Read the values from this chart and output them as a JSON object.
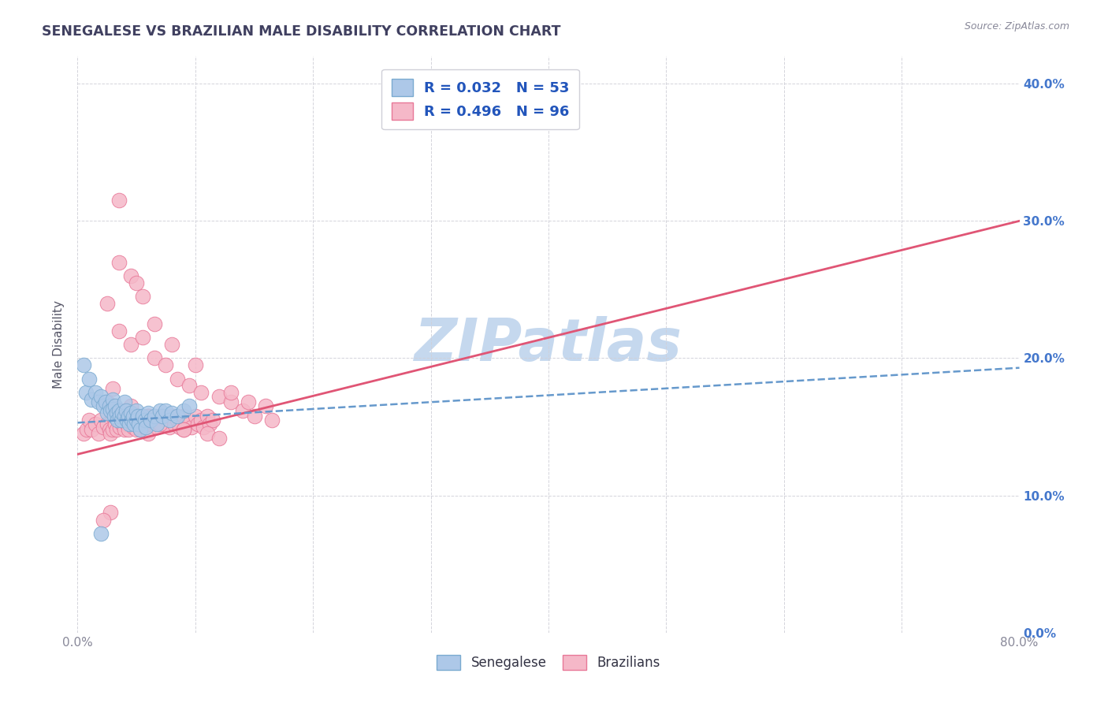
{
  "title": "SENEGALESE VS BRAZILIAN MALE DISABILITY CORRELATION CHART",
  "source_text": "Source: ZipAtlas.com",
  "ylabel": "Male Disability",
  "xlim": [
    0.0,
    0.8
  ],
  "ylim": [
    0.0,
    0.42
  ],
  "xticks": [
    0.0,
    0.1,
    0.2,
    0.3,
    0.4,
    0.5,
    0.6,
    0.7,
    0.8
  ],
  "xtick_labels_show": [
    "0.0%",
    "",
    "",
    "",
    "",
    "",
    "",
    "",
    "80.0%"
  ],
  "yticks": [
    0.0,
    0.1,
    0.2,
    0.3,
    0.4
  ],
  "ytick_labels_right": [
    "0.0%",
    "10.0%",
    "20.0%",
    "30.0%",
    "40.0%"
  ],
  "senegalese_R": 0.032,
  "senegalese_N": 53,
  "brazilian_R": 0.496,
  "brazilian_N": 96,
  "senegalese_color": "#adc8e8",
  "senegalese_edge_color": "#7aaad0",
  "brazilian_color": "#f5b8c8",
  "brazilian_edge_color": "#e87898",
  "trend_senegalese_color": "#6699cc",
  "trend_brazilian_color": "#e05575",
  "watermark_color": "#c5d8ee",
  "legend_text_color": "#2255bb",
  "title_color": "#404060",
  "axis_label_color": "#555566",
  "tick_color": "#888899",
  "grid_color": "#d0d0d8",
  "background_color": "#ffffff",
  "right_tick_color": "#4477cc",
  "senegalese_x": [
    0.005,
    0.007,
    0.01,
    0.012,
    0.015,
    0.018,
    0.02,
    0.022,
    0.024,
    0.025,
    0.027,
    0.028,
    0.03,
    0.03,
    0.031,
    0.032,
    0.033,
    0.034,
    0.035,
    0.036,
    0.037,
    0.038,
    0.04,
    0.04,
    0.041,
    0.042,
    0.043,
    0.044,
    0.045,
    0.046,
    0.047,
    0.048,
    0.05,
    0.05,
    0.051,
    0.052,
    0.053,
    0.055,
    0.057,
    0.058,
    0.06,
    0.062,
    0.065,
    0.067,
    0.07,
    0.072,
    0.075,
    0.078,
    0.08,
    0.085,
    0.09,
    0.095,
    0.02
  ],
  "senegalese_y": [
    0.195,
    0.175,
    0.185,
    0.17,
    0.175,
    0.168,
    0.172,
    0.165,
    0.168,
    0.16,
    0.165,
    0.162,
    0.17,
    0.163,
    0.158,
    0.165,
    0.16,
    0.155,
    0.162,
    0.158,
    0.155,
    0.16,
    0.168,
    0.158,
    0.162,
    0.155,
    0.158,
    0.152,
    0.16,
    0.155,
    0.158,
    0.152,
    0.162,
    0.155,
    0.158,
    0.152,
    0.148,
    0.158,
    0.155,
    0.15,
    0.16,
    0.155,
    0.158,
    0.152,
    0.162,
    0.158,
    0.162,
    0.155,
    0.16,
    0.158,
    0.162,
    0.165,
    0.072
  ],
  "brazilian_x": [
    0.005,
    0.008,
    0.01,
    0.012,
    0.015,
    0.018,
    0.02,
    0.022,
    0.025,
    0.027,
    0.028,
    0.03,
    0.03,
    0.032,
    0.033,
    0.035,
    0.036,
    0.038,
    0.04,
    0.04,
    0.042,
    0.043,
    0.045,
    0.047,
    0.048,
    0.05,
    0.05,
    0.052,
    0.053,
    0.055,
    0.057,
    0.058,
    0.06,
    0.06,
    0.062,
    0.065,
    0.067,
    0.07,
    0.072,
    0.075,
    0.078,
    0.08,
    0.082,
    0.085,
    0.087,
    0.09,
    0.092,
    0.095,
    0.097,
    0.1,
    0.102,
    0.105,
    0.107,
    0.11,
    0.112,
    0.115,
    0.025,
    0.035,
    0.045,
    0.055,
    0.065,
    0.075,
    0.085,
    0.095,
    0.105,
    0.12,
    0.13,
    0.14,
    0.15,
    0.165,
    0.045,
    0.055,
    0.065,
    0.13,
    0.145,
    0.16,
    0.035,
    0.05,
    0.08,
    0.1,
    0.025,
    0.03,
    0.04,
    0.05,
    0.06,
    0.07,
    0.09,
    0.11,
    0.12,
    0.03,
    0.045,
    0.06,
    0.09,
    0.035,
    0.028,
    0.022
  ],
  "brazilian_y": [
    0.145,
    0.148,
    0.155,
    0.148,
    0.152,
    0.145,
    0.155,
    0.15,
    0.152,
    0.148,
    0.145,
    0.158,
    0.148,
    0.152,
    0.148,
    0.155,
    0.15,
    0.152,
    0.158,
    0.148,
    0.152,
    0.148,
    0.155,
    0.15,
    0.152,
    0.158,
    0.148,
    0.152,
    0.148,
    0.155,
    0.15,
    0.152,
    0.158,
    0.145,
    0.152,
    0.155,
    0.15,
    0.158,
    0.152,
    0.155,
    0.15,
    0.158,
    0.152,
    0.155,
    0.15,
    0.158,
    0.152,
    0.155,
    0.15,
    0.158,
    0.152,
    0.155,
    0.15,
    0.158,
    0.152,
    0.155,
    0.24,
    0.22,
    0.21,
    0.215,
    0.2,
    0.195,
    0.185,
    0.18,
    0.175,
    0.172,
    0.168,
    0.162,
    0.158,
    0.155,
    0.26,
    0.245,
    0.225,
    0.175,
    0.168,
    0.165,
    0.27,
    0.255,
    0.21,
    0.195,
    0.168,
    0.165,
    0.162,
    0.158,
    0.155,
    0.152,
    0.148,
    0.145,
    0.142,
    0.178,
    0.165,
    0.158,
    0.148,
    0.315,
    0.088,
    0.082
  ],
  "trend_braz_x0": 0.0,
  "trend_braz_y0": 0.13,
  "trend_braz_x1": 0.8,
  "trend_braz_y1": 0.3,
  "trend_sene_x0": 0.0,
  "trend_sene_y0": 0.153,
  "trend_sene_x1": 0.8,
  "trend_sene_y1": 0.193
}
